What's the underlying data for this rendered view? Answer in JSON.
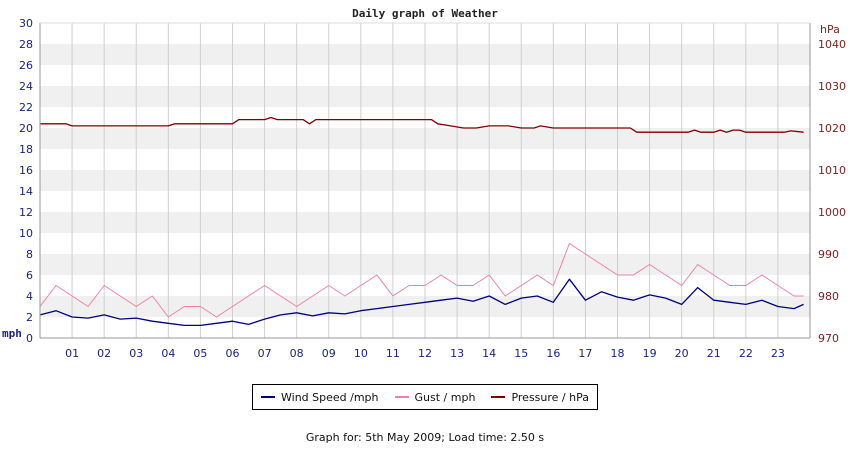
{
  "chart_data": {
    "type": "line",
    "title": "Daily graph of Weather",
    "left_axis": {
      "unit": "mph",
      "ylim": [
        0,
        30
      ],
      "ticks": [
        "0",
        "2",
        "4",
        "6",
        "8",
        "10",
        "12",
        "14",
        "16",
        "18",
        "20",
        "22",
        "24",
        "26",
        "28",
        "30"
      ]
    },
    "right_axis": {
      "unit": "hPa",
      "ylim": [
        970,
        1045
      ],
      "ticks": [
        "970",
        "980",
        "990",
        "1000",
        "1010",
        "1020",
        "1030",
        "1040"
      ]
    },
    "x_axis": {
      "xlim": [
        0,
        24
      ],
      "ticks": [
        "01",
        "02",
        "03",
        "04",
        "05",
        "06",
        "07",
        "08",
        "09",
        "10",
        "11",
        "12",
        "13",
        "14",
        "15",
        "16",
        "17",
        "18",
        "19",
        "20",
        "21",
        "22",
        "23"
      ]
    },
    "grid": true,
    "legend_position": "bottom-center",
    "series": [
      {
        "name": "Wind Speed /mph",
        "axis": "left",
        "color": "#000080",
        "x": [
          0,
          0.5,
          1,
          1.5,
          2,
          2.5,
          3,
          3.5,
          4,
          4.5,
          5,
          5.5,
          6,
          6.5,
          7,
          7.5,
          8,
          8.5,
          9,
          9.5,
          10,
          10.5,
          11,
          11.5,
          12,
          12.5,
          13,
          13.5,
          14,
          14.5,
          15,
          15.5,
          16,
          16.5,
          17,
          17.5,
          18,
          18.5,
          19,
          19.5,
          20,
          20.5,
          21,
          21.5,
          22,
          22.5,
          23,
          23.5,
          23.8
        ],
        "values": [
          2.2,
          2.6,
          2.0,
          1.9,
          2.2,
          1.8,
          1.9,
          1.6,
          1.4,
          1.2,
          1.2,
          1.4,
          1.6,
          1.3,
          1.8,
          2.2,
          2.4,
          2.1,
          2.4,
          2.3,
          2.6,
          2.8,
          3.0,
          3.2,
          3.4,
          3.6,
          3.8,
          3.5,
          4.0,
          3.2,
          3.8,
          4.0,
          3.4,
          5.6,
          3.6,
          4.4,
          3.9,
          3.6,
          4.1,
          3.8,
          3.2,
          4.8,
          3.6,
          3.4,
          3.2,
          3.6,
          3.0,
          2.8,
          3.2
        ]
      },
      {
        "name": "Gust / mph",
        "axis": "left",
        "color": "#f080a8",
        "x": [
          0,
          0.5,
          1,
          1.5,
          2,
          2.5,
          3,
          3.5,
          4,
          4.5,
          5,
          5.5,
          6,
          6.5,
          7,
          7.5,
          8,
          8.5,
          9,
          9.5,
          10,
          10.5,
          11,
          11.5,
          12,
          12.5,
          13,
          13.5,
          14,
          14.5,
          15,
          15.5,
          16,
          16.5,
          17,
          17.5,
          18,
          18.5,
          19,
          19.5,
          20,
          20.5,
          21,
          21.5,
          22,
          22.5,
          23,
          23.5,
          23.8
        ],
        "values": [
          3,
          5,
          4,
          3,
          5,
          4,
          3,
          4,
          2,
          3,
          3,
          2,
          3,
          4,
          5,
          4,
          3,
          4,
          5,
          4,
          5,
          6,
          4,
          5,
          5,
          6,
          5,
          5,
          6,
          4,
          5,
          6,
          5,
          9,
          8,
          7,
          6,
          6,
          7,
          6,
          5,
          7,
          6,
          5,
          5,
          6,
          5,
          4,
          4
        ]
      },
      {
        "name": "Pressure / hPa",
        "axis": "right",
        "color": "#800000",
        "x": [
          0,
          0.8,
          1,
          4,
          4.2,
          6,
          6.2,
          7,
          7.2,
          7.4,
          8.2,
          8.4,
          8.6,
          12.2,
          12.4,
          12.8,
          13.2,
          13.6,
          14,
          14.6,
          15,
          15.4,
          15.6,
          16,
          18.4,
          18.6,
          20.2,
          20.4,
          20.6,
          21,
          21.2,
          21.4,
          21.6,
          21.8,
          22,
          22.4,
          23,
          23.2,
          23.4,
          23.8
        ],
        "values": [
          1021,
          1021,
          1020.5,
          1020.5,
          1021,
          1021,
          1022,
          1022,
          1022.5,
          1022,
          1022,
          1021,
          1022,
          1022,
          1021,
          1020.5,
          1020,
          1020,
          1020.5,
          1020.5,
          1020,
          1020,
          1020.5,
          1020,
          1020,
          1019,
          1019,
          1019.5,
          1019,
          1019,
          1019.5,
          1019,
          1019.5,
          1019.5,
          1019,
          1019,
          1019,
          1019,
          1019.3,
          1019
        ]
      }
    ]
  },
  "legend": [
    {
      "label": "Wind Speed /mph",
      "color": "#000080"
    },
    {
      "label": "Gust / mph",
      "color": "#f080a8"
    },
    {
      "label": "Pressure / hPa",
      "color": "#800000"
    }
  ],
  "footer": "Graph for: 5th May 2009; Load time: 2.50 s"
}
